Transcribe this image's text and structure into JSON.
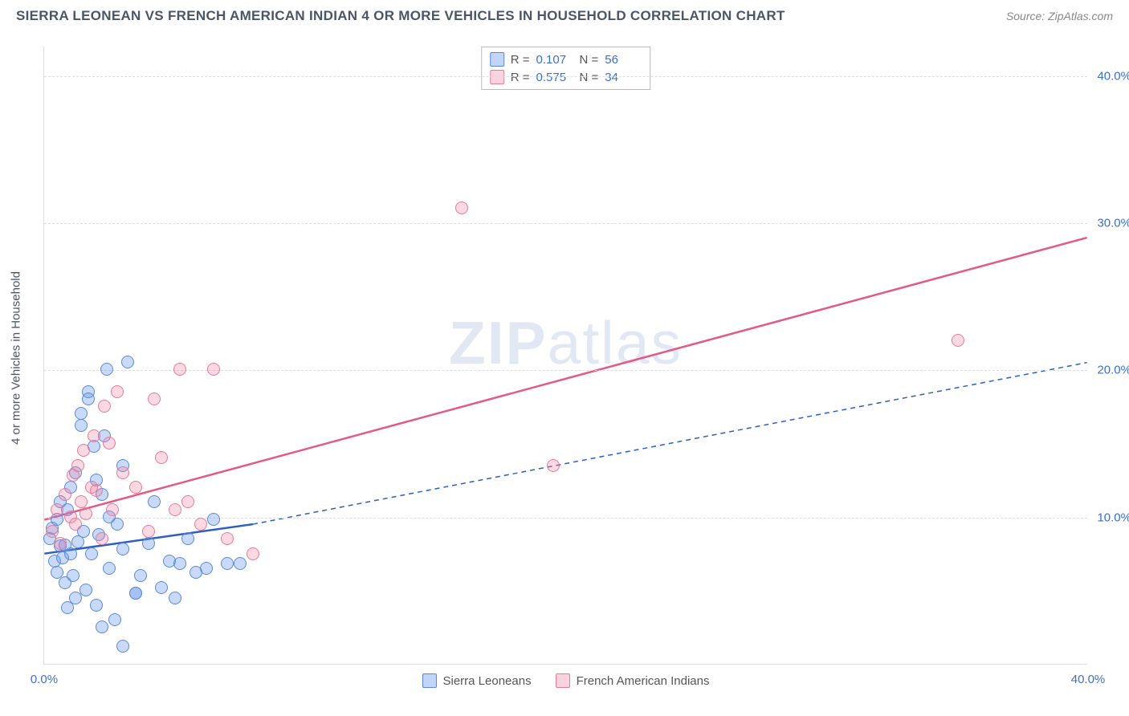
{
  "title": "SIERRA LEONEAN VS FRENCH AMERICAN INDIAN 4 OR MORE VEHICLES IN HOUSEHOLD CORRELATION CHART",
  "source": "Source: ZipAtlas.com",
  "ylabel": "4 or more Vehicles in Household",
  "watermark_a": "ZIP",
  "watermark_b": "atlas",
  "chart": {
    "type": "scatter",
    "xlim": [
      0,
      40
    ],
    "ylim": [
      0,
      42
    ],
    "xticks": [
      {
        "v": 0,
        "l": "0.0%"
      },
      {
        "v": 40,
        "l": "40.0%"
      }
    ],
    "yticks": [
      {
        "v": 10,
        "l": "10.0%"
      },
      {
        "v": 20,
        "l": "20.0%"
      },
      {
        "v": 30,
        "l": "30.0%"
      },
      {
        "v": 40,
        "l": "40.0%"
      }
    ],
    "grid_color": "#dddddd",
    "background_color": "#ffffff",
    "marker_size": 16,
    "colors": {
      "blue_fill": "rgba(100,149,237,0.35)",
      "blue_stroke": "#5a8ad4",
      "pink_fill": "rgba(240,128,160,0.30)",
      "pink_stroke": "#e77a9a",
      "blue_line": "#2b5fc0",
      "pink_line": "#e35a84"
    },
    "series": [
      {
        "name": "Sierra Leoneans",
        "cls": "p-blue",
        "stats": {
          "R_label": "R =",
          "R": "0.107",
          "N_label": "N =",
          "N": "56"
        },
        "trend": {
          "x1": 0,
          "y1": 7.5,
          "x2": 8.0,
          "y2": 9.5,
          "dash_x2": 40,
          "dash_y2": 20.5,
          "color": "#2b5fc0",
          "width": 2.5
        },
        "points": [
          [
            0.2,
            8.5
          ],
          [
            0.3,
            9.2
          ],
          [
            0.4,
            7.0
          ],
          [
            0.5,
            9.8
          ],
          [
            0.5,
            6.2
          ],
          [
            0.6,
            8.0
          ],
          [
            0.6,
            11.0
          ],
          [
            0.7,
            7.2
          ],
          [
            0.8,
            8.1
          ],
          [
            0.8,
            5.5
          ],
          [
            0.9,
            10.5
          ],
          [
            1.0,
            7.5
          ],
          [
            1.0,
            12.0
          ],
          [
            1.1,
            6.0
          ],
          [
            1.2,
            13.0
          ],
          [
            1.2,
            4.5
          ],
          [
            1.3,
            8.3
          ],
          [
            1.4,
            17.0
          ],
          [
            1.4,
            16.2
          ],
          [
            1.5,
            9.0
          ],
          [
            1.6,
            5.0
          ],
          [
            1.7,
            18.5
          ],
          [
            1.7,
            18.0
          ],
          [
            1.8,
            7.5
          ],
          [
            1.9,
            14.8
          ],
          [
            2.0,
            12.5
          ],
          [
            2.0,
            4.0
          ],
          [
            2.1,
            8.8
          ],
          [
            2.2,
            11.5
          ],
          [
            2.3,
            15.5
          ],
          [
            2.4,
            20.0
          ],
          [
            2.5,
            6.5
          ],
          [
            2.5,
            10.0
          ],
          [
            2.7,
            3.0
          ],
          [
            2.8,
            9.5
          ],
          [
            3.0,
            7.8
          ],
          [
            3.0,
            13.5
          ],
          [
            3.2,
            20.5
          ],
          [
            3.5,
            4.8
          ],
          [
            3.5,
            4.8
          ],
          [
            3.7,
            6.0
          ],
          [
            4.0,
            8.2
          ],
          [
            4.2,
            11.0
          ],
          [
            4.5,
            5.2
          ],
          [
            4.8,
            7.0
          ],
          [
            5.0,
            4.5
          ],
          [
            5.2,
            6.8
          ],
          [
            5.5,
            8.5
          ],
          [
            5.8,
            6.2
          ],
          [
            6.2,
            6.5
          ],
          [
            6.5,
            9.8
          ],
          [
            7.0,
            6.8
          ],
          [
            7.5,
            6.8
          ],
          [
            3.0,
            1.2
          ],
          [
            2.2,
            2.5
          ],
          [
            0.9,
            3.8
          ]
        ]
      },
      {
        "name": "French American Indians",
        "cls": "p-pink",
        "stats": {
          "R_label": "R =",
          "R": "0.575",
          "N_label": "N =",
          "N": "34"
        },
        "trend": {
          "x1": 0,
          "y1": 9.8,
          "x2": 40,
          "y2": 29.0,
          "color": "#e35a84",
          "width": 2.5
        },
        "points": [
          [
            0.3,
            9.0
          ],
          [
            0.5,
            10.5
          ],
          [
            0.6,
            8.2
          ],
          [
            0.8,
            11.5
          ],
          [
            1.0,
            10.0
          ],
          [
            1.1,
            12.8
          ],
          [
            1.2,
            9.5
          ],
          [
            1.3,
            13.5
          ],
          [
            1.4,
            11.0
          ],
          [
            1.5,
            14.5
          ],
          [
            1.6,
            10.2
          ],
          [
            1.8,
            12.0
          ],
          [
            1.9,
            15.5
          ],
          [
            2.0,
            11.8
          ],
          [
            2.2,
            8.5
          ],
          [
            2.3,
            17.5
          ],
          [
            2.5,
            15.0
          ],
          [
            2.6,
            10.5
          ],
          [
            2.8,
            18.5
          ],
          [
            3.0,
            13.0
          ],
          [
            3.5,
            12.0
          ],
          [
            4.0,
            9.0
          ],
          [
            4.2,
            18.0
          ],
          [
            4.5,
            14.0
          ],
          [
            5.0,
            10.5
          ],
          [
            5.2,
            20.0
          ],
          [
            5.5,
            11.0
          ],
          [
            6.0,
            9.5
          ],
          [
            6.5,
            20.0
          ],
          [
            7.0,
            8.5
          ],
          [
            8.0,
            7.5
          ],
          [
            16.0,
            31.0
          ],
          [
            19.5,
            13.5
          ],
          [
            35.0,
            22.0
          ]
        ]
      }
    ]
  },
  "bottom_legend": [
    {
      "swatch": "sw-blue",
      "label": "Sierra Leoneans"
    },
    {
      "swatch": "sw-pink",
      "label": "French American Indians"
    }
  ]
}
